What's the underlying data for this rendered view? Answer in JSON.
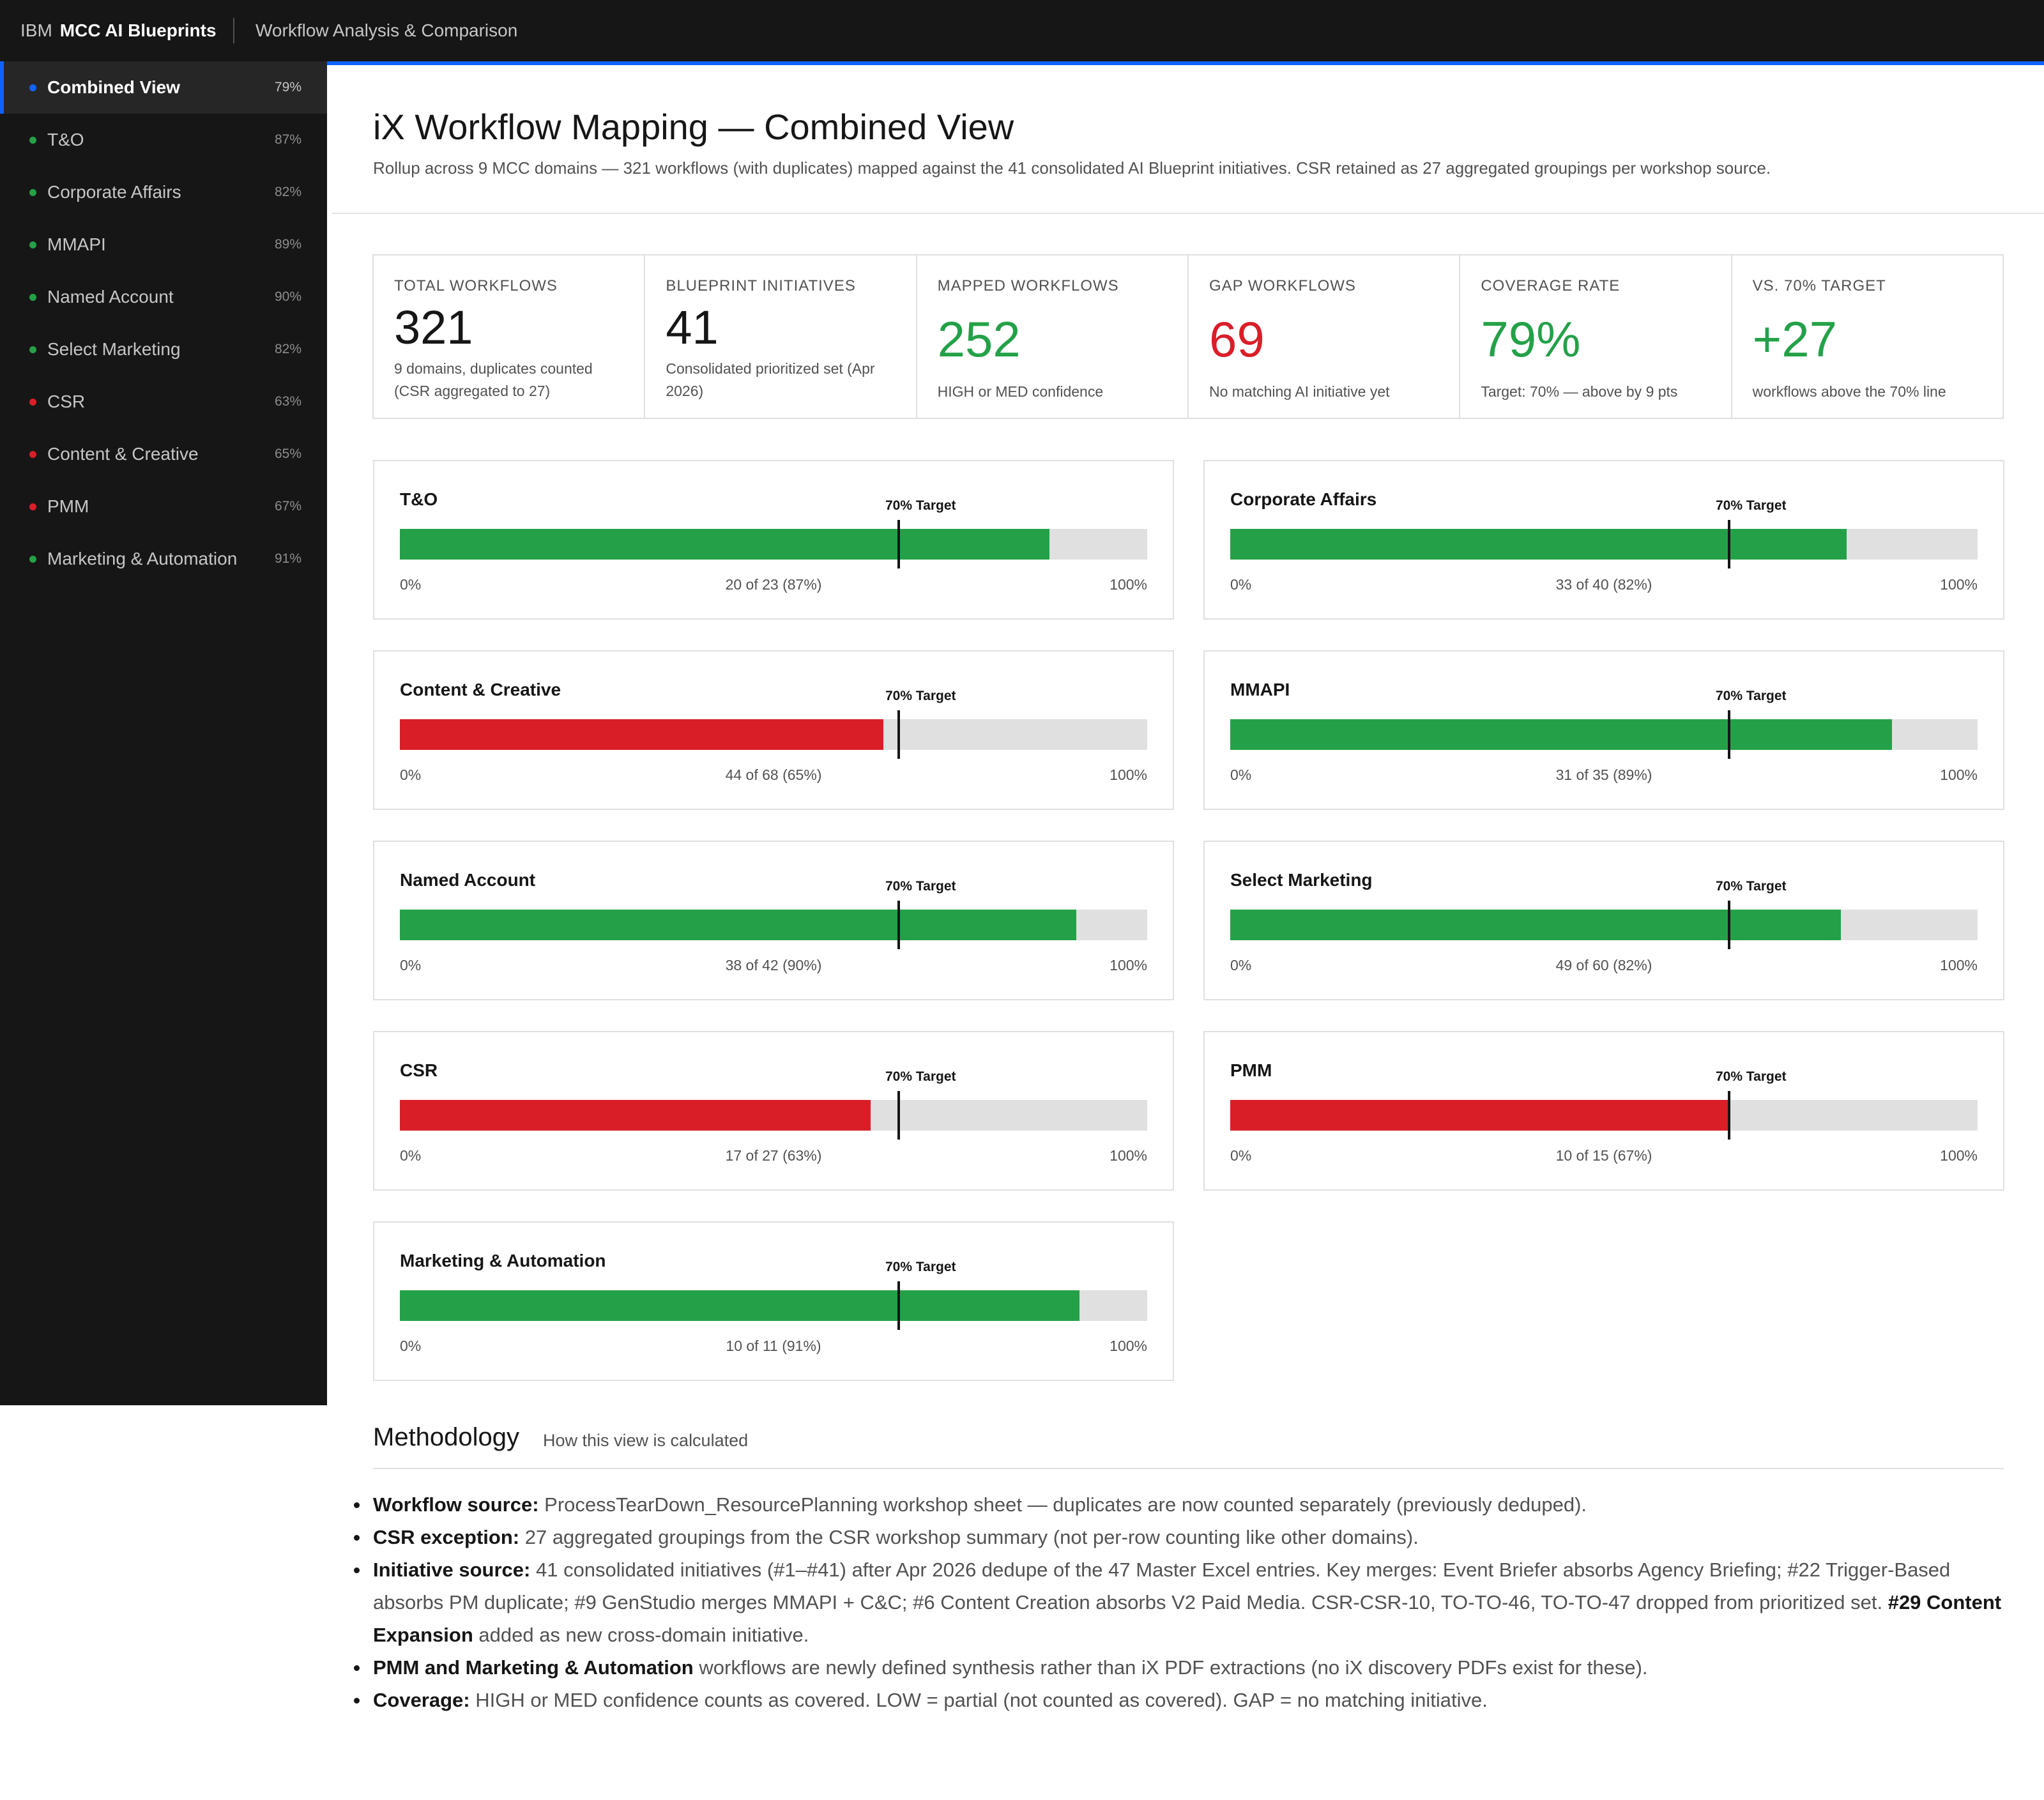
{
  "header": {
    "ibm": "IBM",
    "product": "MCC AI Blueprints",
    "section": "Workflow Analysis & Comparison"
  },
  "sidebar": {
    "items": [
      {
        "label": "Combined View",
        "pct": "79%",
        "status": "active"
      },
      {
        "label": "T&O",
        "pct": "87%",
        "status": "ok"
      },
      {
        "label": "Corporate Affairs",
        "pct": "82%",
        "status": "ok"
      },
      {
        "label": "MMAPI",
        "pct": "89%",
        "status": "ok"
      },
      {
        "label": "Named Account",
        "pct": "90%",
        "status": "ok"
      },
      {
        "label": "Select Marketing",
        "pct": "82%",
        "status": "ok"
      },
      {
        "label": "CSR",
        "pct": "63%",
        "status": "gap"
      },
      {
        "label": "Content & Creative",
        "pct": "65%",
        "status": "gap"
      },
      {
        "label": "PMM",
        "pct": "67%",
        "status": "gap"
      },
      {
        "label": "Marketing & Automation",
        "pct": "91%",
        "status": "ok"
      }
    ]
  },
  "page": {
    "title": "iX Workflow Mapping — Combined View",
    "description": "Rollup across 9 MCC domains — 321 workflows (with duplicates) mapped against the 41 consolidated AI Blueprint initiatives. CSR retained as 27 aggregated groupings per workshop source."
  },
  "stats": [
    {
      "label": "TOTAL WORKFLOWS",
      "value": "321",
      "note": "9 domains, duplicates counted (CSR aggregated to 27)"
    },
    {
      "label": "BLUEPRINT INITIATIVES",
      "value": "41",
      "note": "Consolidated prioritized set (Apr 2026)"
    },
    {
      "label": "MAPPED WORKFLOWS",
      "value": "252",
      "note": "HIGH or MED confidence"
    },
    {
      "label": "GAP WORKFLOWS",
      "value": "69",
      "note": "No matching AI initiative yet"
    },
    {
      "label": "COVERAGE RATE",
      "value": "79%",
      "note": "Target: 70% — above by 9 pts"
    },
    {
      "label": "VS. 70% TARGET",
      "value": "+27",
      "note": "workflows above the 70% line"
    }
  ],
  "domains": {
    "target_label": "70% Target",
    "target_fraction": 0.7,
    "min_label": "0%",
    "max_label": "100%",
    "cards": [
      {
        "name": "T&O",
        "summary": "20 of 23 (87%)",
        "mapped": 20,
        "total": 23,
        "status": "ok"
      },
      {
        "name": "Corporate Affairs",
        "summary": "33 of 40 (82%)",
        "mapped": 33,
        "total": 40,
        "status": "ok"
      },
      {
        "name": "Content & Creative",
        "summary": "44 of 68 (65%)",
        "mapped": 44,
        "total": 68,
        "status": "gap"
      },
      {
        "name": "MMAPI",
        "summary": "31 of 35 (89%)",
        "mapped": 31,
        "total": 35,
        "status": "ok"
      },
      {
        "name": "Named Account",
        "summary": "38 of 42 (90%)",
        "mapped": 38,
        "total": 42,
        "status": "ok"
      },
      {
        "name": "Select Marketing",
        "summary": "49 of 60 (82%)",
        "mapped": 49,
        "total": 60,
        "status": "ok"
      },
      {
        "name": "CSR",
        "summary": "17 of 27 (63%)",
        "mapped": 17,
        "total": 27,
        "status": "gap"
      },
      {
        "name": "PMM",
        "summary": "10 of 15 (67%)",
        "mapped": 10,
        "total": 15,
        "status": "gap"
      },
      {
        "name": "Marketing & Automation",
        "summary": "10 of 11 (91%)",
        "mapped": 10,
        "total": 11,
        "status": "ok"
      }
    ]
  },
  "methodology": {
    "title": "Methodology",
    "subtitle": "How this view is calculated",
    "items": [
      {
        "lead": "Workflow source:",
        "text": " ProcessTearDown_ResourcePlanning workshop sheet — duplicates are now counted separately (previously deduped)."
      },
      {
        "lead": "CSR exception:",
        "text": " 27 aggregated groupings from the CSR workshop summary (not per-row counting like other domains)."
      },
      {
        "lead": "Initiative source:",
        "text": " 41 consolidated initiatives (#1–#41) after Apr 2026 dedupe of the 47 Master Excel entries. Key merges: Event Briefer absorbs Agency Briefing; #22 Trigger-Based absorbs PM duplicate; #9 GenStudio merges MMAPI + C&C; #6 Content Creation absorbs V2 Paid Media. CSR-CSR-10, TO-TO-46, TO-TO-47 dropped from prioritized set. ",
        "lead2": "#29 Content Expansion",
        "text2": " added as new cross-domain initiative."
      },
      {
        "lead": "PMM and Marketing & Automation",
        "text": " workflows are newly defined synthesis rather than iX PDF extractions (no iX discovery PDFs exist for these)."
      },
      {
        "lead": "Coverage:",
        "text": " HIGH or MED confidence counts as covered. LOW = partial (not counted as covered). GAP = no matching initiative."
      }
    ]
  },
  "colors": {
    "ok": "#24a148",
    "gap": "#da1e28",
    "accent": "#0f62fe"
  }
}
